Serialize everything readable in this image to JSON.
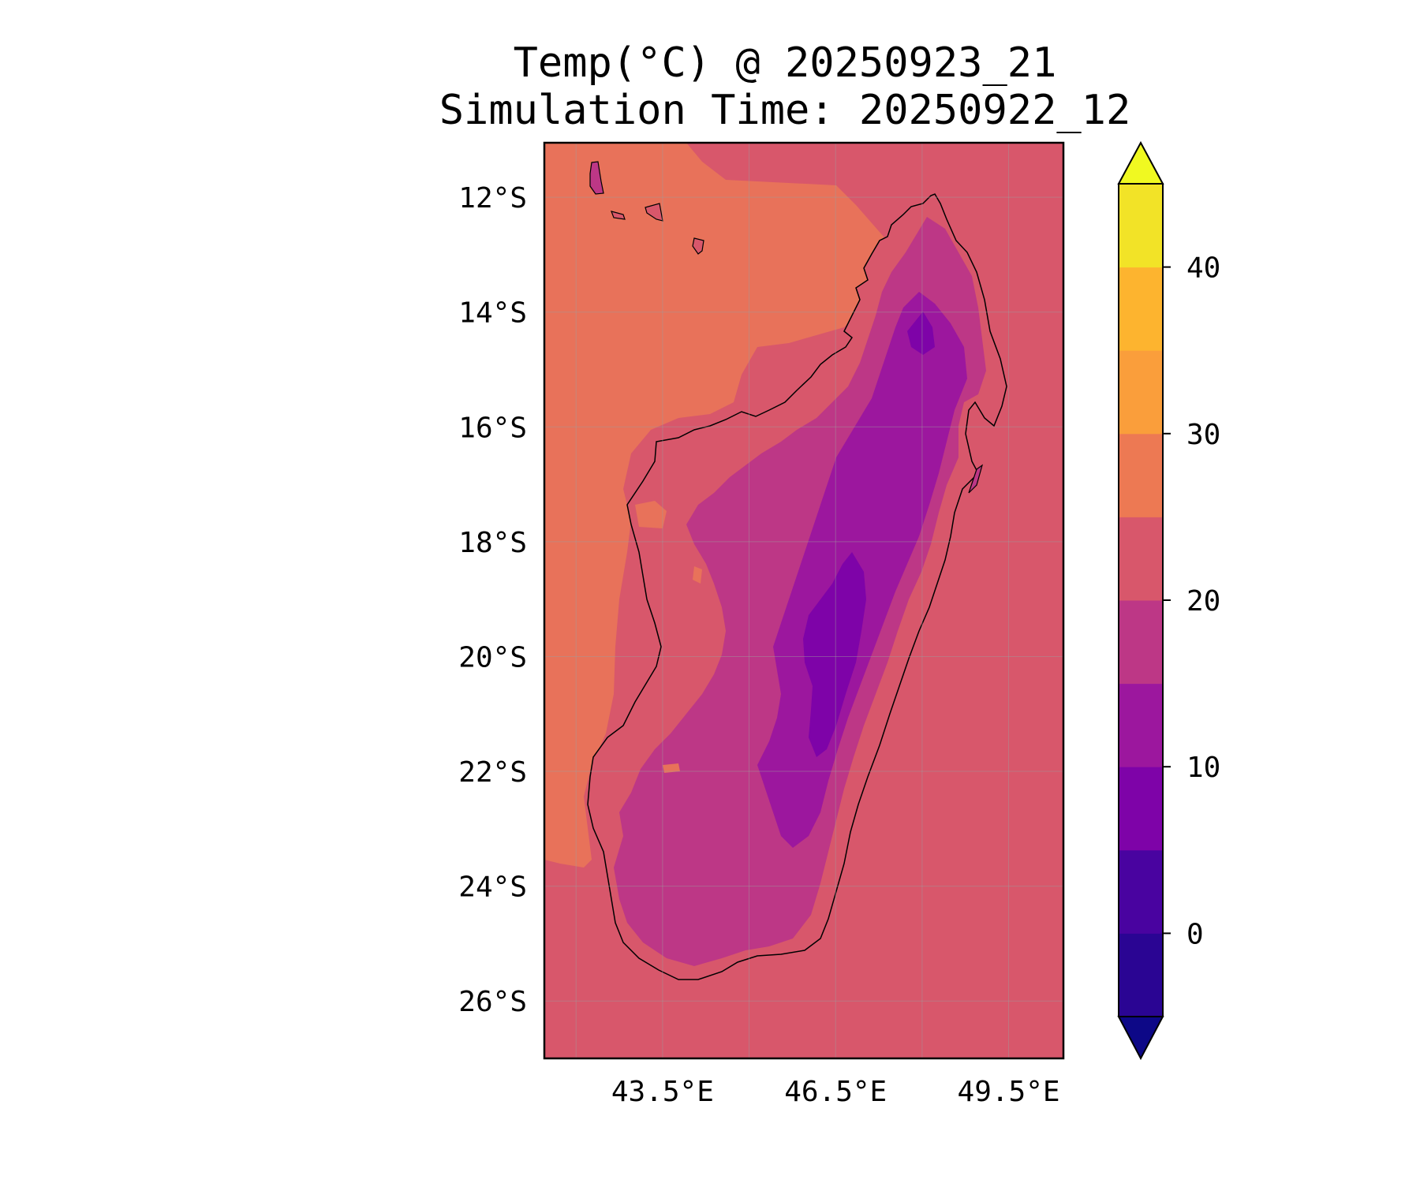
{
  "title": {
    "line1": "Temp(°C) @ 20250923_21",
    "line2": "Simulation Time: 20250922_12"
  },
  "map": {
    "lon_ticks": [
      "43.5°E",
      "46.5°E",
      "49.5°E"
    ],
    "lon_tick_values": [
      43.5,
      46.5,
      49.5
    ],
    "lat_ticks": [
      "12°S",
      "14°S",
      "16°S",
      "18°S",
      "20°S",
      "22°S",
      "24°S",
      "26°S"
    ],
    "lat_tick_values": [
      -12,
      -14,
      -16,
      -18,
      -20,
      -22,
      -24,
      -26
    ],
    "lon_range": [
      41.45,
      50.45
    ],
    "lat_range": [
      -27.0,
      -11.05
    ],
    "grid": true,
    "ocean_value_west": "25-30",
    "ocean_value_east": "20-25"
  },
  "colorbar": {
    "ticks": [
      "0",
      "10",
      "20",
      "30",
      "40"
    ],
    "tick_values": [
      0,
      10,
      20,
      30,
      40
    ],
    "range": [
      -5,
      45
    ],
    "extend": "both",
    "levels": [
      -5,
      0,
      5,
      10,
      15,
      20,
      25,
      30,
      35,
      40,
      45
    ],
    "colors": {
      "under": "#0d0887",
      "band_m5_0": "#2a0593",
      "band_0_5": "#4903a0",
      "band_5_10": "#7e03a8",
      "band_10_15": "#9c179e",
      "band_15_20": "#bd3786",
      "band_20_25": "#d8576b",
      "band_25_30": "#ed7953",
      "band_30_35": "#fa9e3b",
      "band_35_40": "#fdb42f",
      "band_40_45": "#f2e327",
      "over": "#f0f921"
    }
  }
}
